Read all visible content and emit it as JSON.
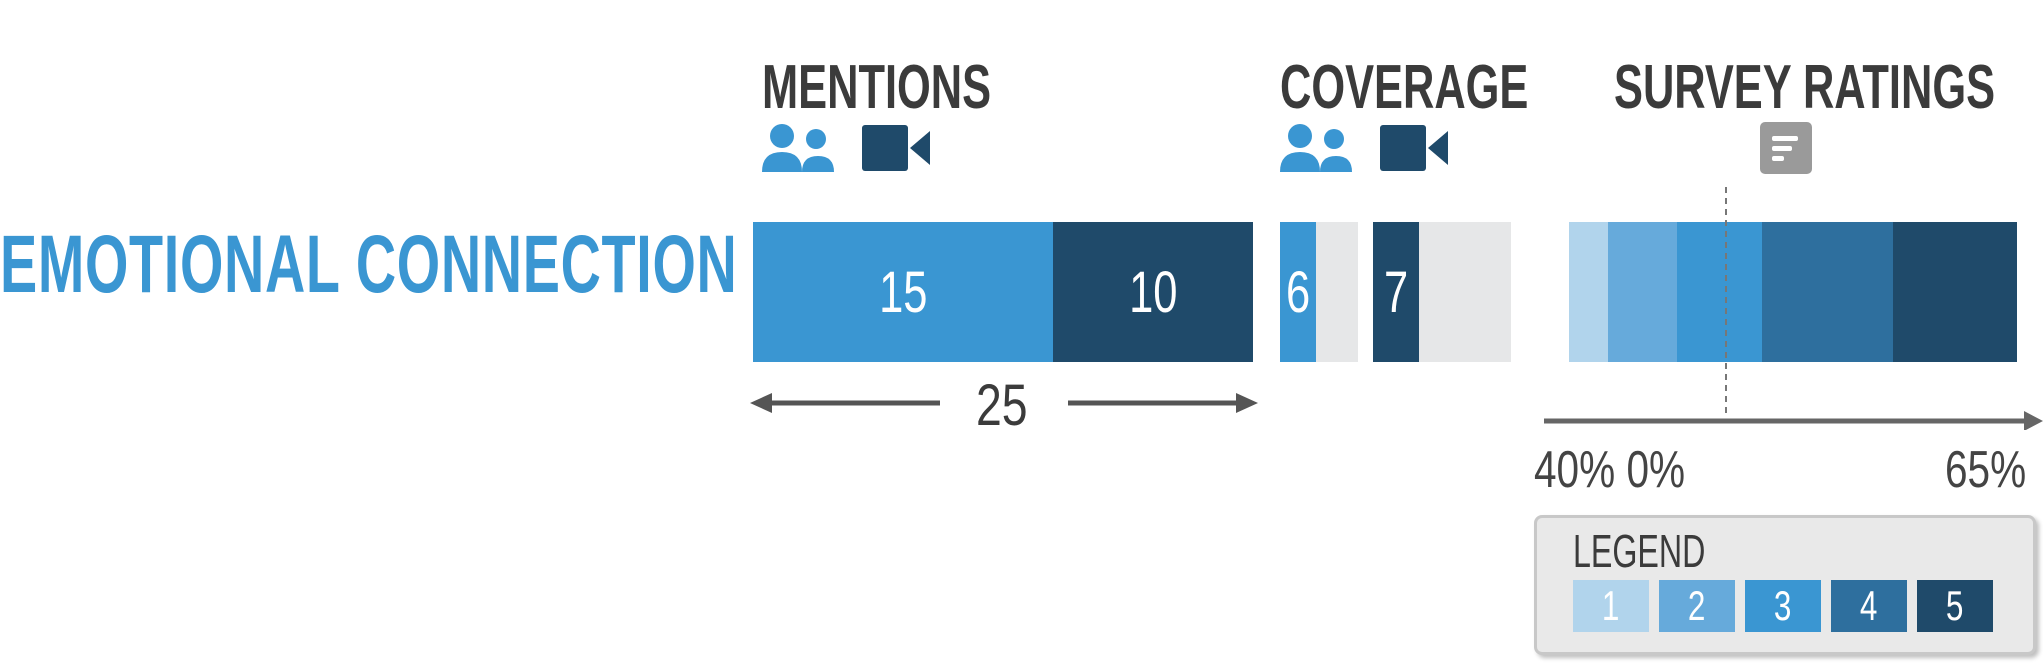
{
  "row_label": "EMOTIONAL CONNECTION",
  "sections": {
    "mentions": {
      "title": "MENTIONS",
      "icons": [
        "people-icon",
        "video-camera-icon"
      ]
    },
    "coverage": {
      "title": "COVERAGE",
      "icons": [
        "people-icon",
        "video-camera-icon"
      ]
    },
    "survey": {
      "title": "SURVEY RATINGS",
      "icons": [
        "survey-document-icon"
      ]
    }
  },
  "chart_data": {
    "type": "bar",
    "row": "EMOTIONAL CONNECTION",
    "mentions": {
      "series": [
        {
          "name": "people",
          "value": 15,
          "color": "#3a96d2"
        },
        {
          "name": "video",
          "value": 10,
          "color": "#1f4a6a"
        }
      ],
      "total": "25"
    },
    "coverage": {
      "series": [
        {
          "name": "people",
          "value": 6,
          "label": "6",
          "color": "#3a96d2",
          "track_color": "#e6e7e8"
        },
        {
          "name": "video",
          "value": 7,
          "label": "7",
          "color": "#1f4a6a",
          "track_color": "#e6e7e8"
        }
      ]
    },
    "survey_ratings": {
      "stacked_100": true,
      "segments": [
        {
          "rating": "1",
          "percent": 5,
          "color": "#b1d4ec"
        },
        {
          "rating": "2",
          "percent": 9,
          "color": "#66aadb"
        },
        {
          "rating": "3",
          "percent": 11,
          "color": "#3a96d2"
        },
        {
          "rating": "4",
          "percent": 17,
          "color": "#2e6f9e"
        },
        {
          "rating": "5",
          "percent": 16,
          "color": "#1f4a6a"
        }
      ],
      "axis_labels": {
        "left": "40% 0%",
        "right": "65%"
      }
    },
    "legend": {
      "title": "LEGEND",
      "items": [
        {
          "label": "1",
          "color": "#b1d4ec"
        },
        {
          "label": "2",
          "color": "#66aadb"
        },
        {
          "label": "3",
          "color": "#3a96d2"
        },
        {
          "label": "4",
          "color": "#2e6f9e"
        },
        {
          "label": "5",
          "color": "#1f4a6a"
        }
      ]
    }
  },
  "colors": {
    "accent": "#3a96d2",
    "dark": "#1f4a6a",
    "text": "#3b3b3b",
    "track": "#e6e7e8"
  }
}
